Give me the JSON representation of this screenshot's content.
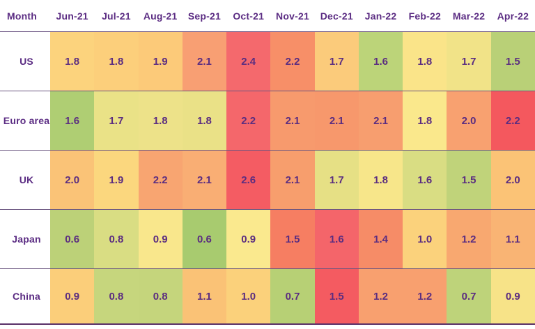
{
  "table": {
    "header_label": "Month",
    "columns": [
      "Jun-21",
      "Jul-21",
      "Aug-21",
      "Sep-21",
      "Oct-21",
      "Nov-21",
      "Dec-21",
      "Jan-22",
      "Feb-22",
      "Mar-22",
      "Apr-22"
    ],
    "rows": [
      {
        "label": "US",
        "values": [
          "1.8",
          "1.8",
          "1.9",
          "2.1",
          "2.4",
          "2.2",
          "1.7",
          "1.6",
          "1.8",
          "1.7",
          "1.5"
        ],
        "colors": [
          "#FCD37D",
          "#FCCF7B",
          "#FCCA79",
          "#F89F73",
          "#F4696D",
          "#F78F68",
          "#FBCB7B",
          "#BCD479",
          "#FAE489",
          "#F1E388",
          "#B9D077"
        ]
      },
      {
        "label": "Euro area",
        "values": [
          "1.6",
          "1.7",
          "1.8",
          "1.8",
          "2.2",
          "2.1",
          "2.1",
          "2.1",
          "1.8",
          "2.0",
          "2.2"
        ],
        "colors": [
          "#AFCE73",
          "#EAE287",
          "#EDE289",
          "#EAE187",
          "#F4676B",
          "#F79A6D",
          "#F7986C",
          "#F79E6F",
          "#FAE88C",
          "#F8A170",
          "#F4585E"
        ]
      },
      {
        "label": "UK",
        "values": [
          "2.0",
          "1.9",
          "2.2",
          "2.1",
          "2.6",
          "2.1",
          "1.7",
          "1.8",
          "1.6",
          "1.5",
          "2.0"
        ],
        "colors": [
          "#FAC377",
          "#FBD77E",
          "#F8A571",
          "#F9AE74",
          "#F45C63",
          "#F79E6D",
          "#E6E085",
          "#F7E68A",
          "#D9DD83",
          "#C0D37A",
          "#FBC376"
        ]
      },
      {
        "label": "Japan",
        "values": [
          "0.6",
          "0.8",
          "0.9",
          "0.6",
          "0.9",
          "1.5",
          "1.6",
          "1.4",
          "1.0",
          "1.2",
          "1.1"
        ],
        "colors": [
          "#BCD178",
          "#D9DD83",
          "#F9E78C",
          "#A8CB6F",
          "#FAE98E",
          "#F67E62",
          "#F4656A",
          "#F68C67",
          "#FBD27C",
          "#F8A870",
          "#F9B474"
        ]
      },
      {
        "label": "China",
        "values": [
          "0.9",
          "0.8",
          "0.8",
          "1.1",
          "1.0",
          "0.7",
          "1.5",
          "1.2",
          "1.2",
          "0.7",
          "0.9"
        ],
        "colors": [
          "#FBCE7A",
          "#C6D67D",
          "#C5D57C",
          "#FAC276",
          "#FBD17B",
          "#B7D075",
          "#F45B61",
          "#F8A06F",
          "#F8A06F",
          "#BED37A",
          "#F7E388"
        ]
      }
    ]
  },
  "style": {
    "text_color": "#5B2C83",
    "value_text_color": "#5B2D80",
    "header_line_color": "#5C4175",
    "row_line_color": "#6B5680",
    "bottom_line_color": "#5A3168",
    "background": "#FFFFFF"
  },
  "chart_data": {
    "type": "heatmap",
    "x": [
      "Jun-21",
      "Jul-21",
      "Aug-21",
      "Sep-21",
      "Oct-21",
      "Nov-21",
      "Dec-21",
      "Jan-22",
      "Feb-22",
      "Mar-22",
      "Apr-22"
    ],
    "y": [
      "US",
      "Euro area",
      "UK",
      "Japan",
      "China"
    ],
    "xlabel": "Month",
    "values": [
      [
        1.8,
        1.8,
        1.9,
        2.1,
        2.4,
        2.2,
        1.7,
        1.6,
        1.8,
        1.7,
        1.5
      ],
      [
        1.6,
        1.7,
        1.8,
        1.8,
        2.2,
        2.1,
        2.1,
        2.1,
        1.8,
        2.0,
        2.2
      ],
      [
        2.0,
        1.9,
        2.2,
        2.1,
        2.6,
        2.1,
        1.7,
        1.8,
        1.6,
        1.5,
        2.0
      ],
      [
        0.6,
        0.8,
        0.9,
        0.6,
        0.9,
        1.5,
        1.6,
        1.4,
        1.0,
        1.2,
        1.1
      ],
      [
        0.9,
        0.8,
        0.8,
        1.1,
        1.0,
        0.7,
        1.5,
        1.2,
        1.2,
        0.7,
        0.9
      ]
    ],
    "color_scale": "green (low) -> yellow -> orange -> red (high), scaled within each row",
    "legend": "none",
    "grid": "horizontal separator lines between rows, label column on left, bold rule under header and below table"
  }
}
